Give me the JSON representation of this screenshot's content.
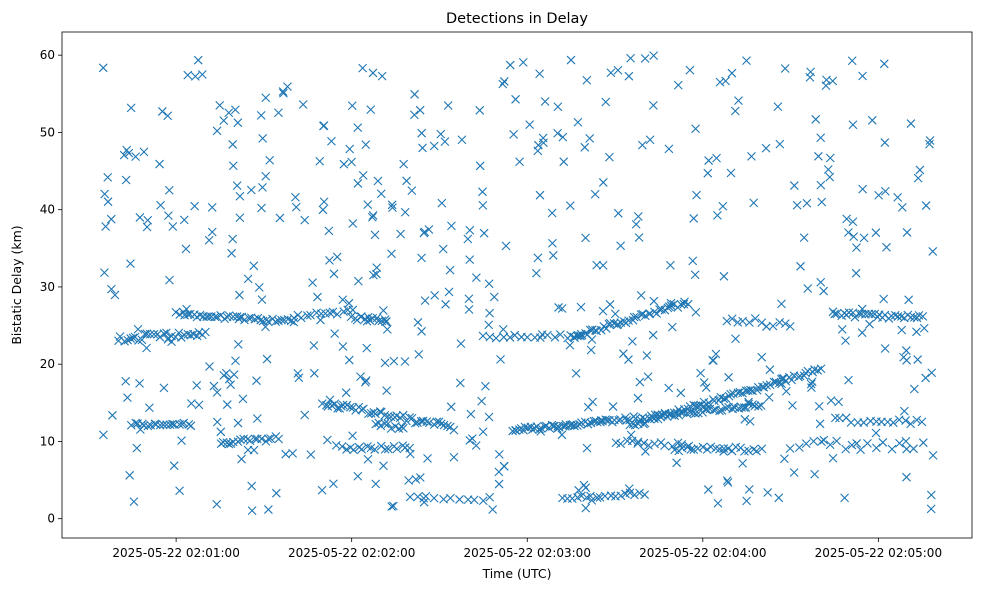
{
  "chart_data": {
    "type": "scatter",
    "title": "Detections in Delay",
    "xlabel": "Time (UTC)",
    "ylabel": "Bistatic Delay (km)",
    "marker": "x",
    "color": "#1f77b4",
    "grid": false,
    "legend": "none",
    "x_range": [
      "2025-05-22 02:00:21",
      "2025-05-22 02:05:32"
    ],
    "ylim": [
      -2.5,
      63
    ],
    "x_ticks": [
      {
        "t": "2025-05-22 02:01:00",
        "label": "2025-05-22 02:01:00"
      },
      {
        "t": "2025-05-22 02:02:00",
        "label": "2025-05-22 02:02:00"
      },
      {
        "t": "2025-05-22 02:03:00",
        "label": "2025-05-22 02:03:00"
      },
      {
        "t": "2025-05-22 02:04:00",
        "label": "2025-05-22 02:04:00"
      },
      {
        "t": "2025-05-22 02:05:00",
        "label": "2025-05-22 02:05:00"
      }
    ],
    "y_ticks": [
      0,
      10,
      20,
      30,
      40,
      50,
      60
    ],
    "time_window": [
      "2025-05-22 02:00:35",
      "2025-05-22 02:05:19"
    ],
    "tracks": [
      {
        "t0": "2025-05-22 02:01:00",
        "t1": "2025-05-22 02:01:40",
        "y0": 26.5,
        "y1": 25.6,
        "n": 40,
        "jitter": 0.3
      },
      {
        "t0": "2025-05-22 02:00:40",
        "t1": "2025-05-22 02:01:10",
        "y0": 23.3,
        "y1": 24.0,
        "n": 30,
        "jitter": 0.4
      },
      {
        "t0": "2025-05-22 02:01:40",
        "t1": "2025-05-22 02:02:00",
        "y0": 26.2,
        "y1": 26.8,
        "n": 14,
        "jitter": 0.3
      },
      {
        "t0": "2025-05-22 02:02:00",
        "t1": "2025-05-22 02:02:12",
        "y0": 26.0,
        "y1": 25.6,
        "n": 14,
        "jitter": 0.3
      },
      {
        "t0": "2025-05-22 02:01:50",
        "t1": "2025-05-22 02:02:35",
        "y0": 15.0,
        "y1": 11.8,
        "n": 45,
        "jitter": 0.4
      },
      {
        "t0": "2025-05-22 02:02:08",
        "t1": "2025-05-22 02:02:18",
        "y0": 12.5,
        "y1": 11.5,
        "n": 10,
        "jitter": 0.3
      },
      {
        "t0": "2025-05-22 02:02:55",
        "t1": "2025-05-22 02:03:25",
        "y0": 11.5,
        "y1": 12.5,
        "n": 40,
        "jitter": 0.25
      },
      {
        "t0": "2025-05-22 02:03:25",
        "t1": "2025-05-22 02:04:20",
        "y0": 12.5,
        "y1": 14.8,
        "n": 55,
        "jitter": 0.25
      },
      {
        "t0": "2025-05-22 02:03:35",
        "t1": "2025-05-22 02:04:40",
        "y0": 12.0,
        "y1": 19.3,
        "n": 70,
        "jitter": 0.3
      },
      {
        "t0": "2025-05-22 02:03:15",
        "t1": "2025-05-22 02:03:55",
        "y0": 23.5,
        "y1": 28.0,
        "n": 45,
        "jitter": 0.3
      },
      {
        "t0": "2025-05-22 02:04:45",
        "t1": "2025-05-22 02:05:15",
        "y0": 26.5,
        "y1": 26.0,
        "n": 30,
        "jitter": 0.3
      },
      {
        "t0": "2025-05-22 02:00:45",
        "t1": "2025-05-22 02:01:05",
        "y0": 12.2,
        "y1": 12.2,
        "n": 20,
        "jitter": 0.2
      },
      {
        "t0": "2025-05-22 02:01:15",
        "t1": "2025-05-22 02:01:35",
        "y0": 9.8,
        "y1": 10.4,
        "n": 18,
        "jitter": 0.3
      },
      {
        "t0": "2025-05-22 02:02:45",
        "t1": "2025-05-22 02:03:18",
        "y0": 23.6,
        "y1": 23.6,
        "n": 16,
        "jitter": 0.3
      },
      {
        "t0": "2025-05-22 02:03:50",
        "t1": "2025-05-22 02:04:20",
        "y0": 9.0,
        "y1": 9.0,
        "n": 22,
        "jitter": 0.3
      },
      {
        "t0": "2025-05-22 02:03:12",
        "t1": "2025-05-22 02:03:40",
        "y0": 2.6,
        "y1": 3.3,
        "n": 18,
        "jitter": 0.2
      },
      {
        "t0": "2025-05-22 02:02:20",
        "t1": "2025-05-22 02:02:45",
        "y0": 2.8,
        "y1": 2.5,
        "n": 10,
        "jitter": 0.2
      },
      {
        "t0": "2025-05-22 02:04:30",
        "t1": "2025-05-22 02:05:15",
        "y0": 9.5,
        "y1": 9.5,
        "n": 18,
        "jitter": 0.6
      },
      {
        "t0": "2025-05-22 02:04:45",
        "t1": "2025-05-22 02:05:15",
        "y0": 12.8,
        "y1": 12.5,
        "n": 16,
        "jitter": 0.3
      },
      {
        "t0": "2025-05-22 02:03:30",
        "t1": "2025-05-22 02:03:55",
        "y0": 10.0,
        "y1": 9.5,
        "n": 14,
        "jitter": 0.3
      },
      {
        "t0": "2025-05-22 02:01:55",
        "t1": "2025-05-22 02:02:20",
        "y0": 9.2,
        "y1": 9.2,
        "n": 18,
        "jitter": 0.3
      },
      {
        "t0": "2025-05-22 02:04:08",
        "t1": "2025-05-22 02:04:30",
        "y0": 26.0,
        "y1": 25.0,
        "n": 12,
        "jitter": 0.5
      }
    ],
    "clutter": {
      "n": 520,
      "y_range": [
        1,
        60
      ]
    }
  }
}
